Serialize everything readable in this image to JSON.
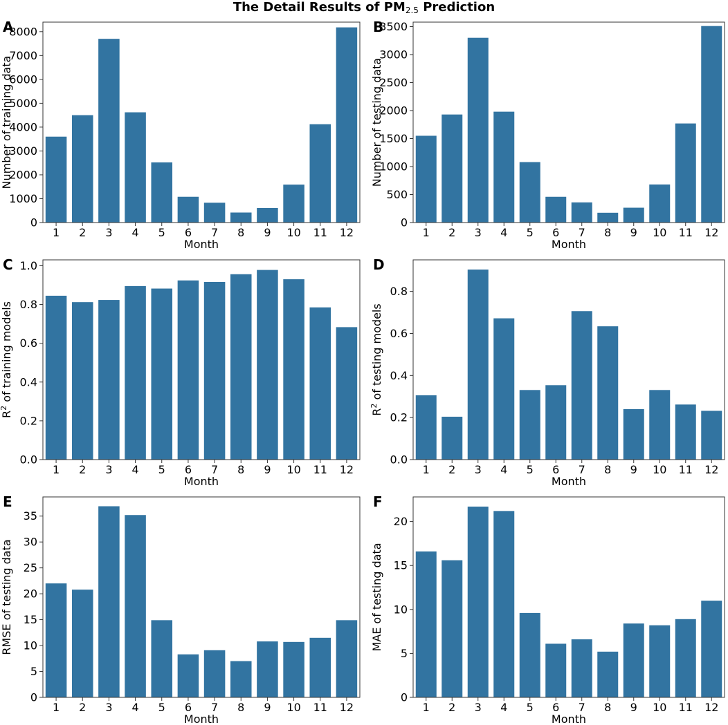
{
  "figure_title": {
    "main": "The Detail Results of PM",
    "sub": "2.5",
    "tail": " Prediction"
  },
  "chart_data": [
    {
      "panel": "A",
      "type": "bar",
      "categories": [
        "1",
        "2",
        "3",
        "4",
        "5",
        "6",
        "7",
        "8",
        "9",
        "10",
        "11",
        "12"
      ],
      "values": [
        3600,
        4500,
        7700,
        4620,
        2520,
        1080,
        830,
        420,
        610,
        1590,
        4120,
        8180
      ],
      "xlabel": "Month",
      "ylabel": "Number of training data",
      "ylim": [
        0,
        8400
      ],
      "yticks": [
        0,
        1000,
        2000,
        3000,
        4000,
        5000,
        6000,
        7000,
        8000
      ],
      "ytick_labels": [
        "0",
        "1000",
        "2000",
        "3000",
        "4000",
        "5000",
        "6000",
        "7000",
        "8000"
      ]
    },
    {
      "panel": "B",
      "type": "bar",
      "categories": [
        "1",
        "2",
        "3",
        "4",
        "5",
        "6",
        "7",
        "8",
        "9",
        "10",
        "11",
        "12"
      ],
      "values": [
        1550,
        1930,
        3300,
        1980,
        1080,
        460,
        360,
        175,
        265,
        680,
        1770,
        3510
      ],
      "xlabel": "Month",
      "ylabel": "Number of testing data",
      "ylim": [
        0,
        3580
      ],
      "yticks": [
        0,
        500,
        1000,
        1500,
        2000,
        2500,
        3000,
        3500
      ],
      "ytick_labels": [
        "0",
        "500",
        "1000",
        "1500",
        "2000",
        "2500",
        "3000",
        "3500"
      ]
    },
    {
      "panel": "C",
      "type": "bar",
      "categories": [
        "1",
        "2",
        "3",
        "4",
        "5",
        "6",
        "7",
        "8",
        "9",
        "10",
        "11",
        "12"
      ],
      "values": [
        0.845,
        0.812,
        0.823,
        0.895,
        0.882,
        0.924,
        0.916,
        0.956,
        0.978,
        0.93,
        0.785,
        0.683
      ],
      "xlabel": "Month",
      "ylabel_main": "R",
      "ylabel_sup": "2",
      "ylabel_rest": " of training models",
      "ylim": [
        0,
        1.03
      ],
      "yticks": [
        0,
        0.2,
        0.4,
        0.6,
        0.8,
        1.0
      ],
      "ytick_labels": [
        "0.0",
        "0.2",
        "0.4",
        "0.6",
        "0.8",
        "1.0"
      ]
    },
    {
      "panel": "D",
      "type": "bar",
      "categories": [
        "1",
        "2",
        "3",
        "4",
        "5",
        "6",
        "7",
        "8",
        "9",
        "10",
        "11",
        "12"
      ],
      "values": [
        0.306,
        0.204,
        0.904,
        0.672,
        0.331,
        0.354,
        0.706,
        0.634,
        0.24,
        0.331,
        0.262,
        0.232
      ],
      "xlabel": "Month",
      "ylabel_main": "R",
      "ylabel_sup": "2",
      "ylabel_rest": " of testing models",
      "ylim": [
        0,
        0.95
      ],
      "yticks": [
        0,
        0.2,
        0.4,
        0.6,
        0.8
      ],
      "ytick_labels": [
        "0.0",
        "0.2",
        "0.4",
        "0.6",
        "0.8"
      ]
    },
    {
      "panel": "E",
      "type": "bar",
      "categories": [
        "1",
        "2",
        "3",
        "4",
        "5",
        "6",
        "7",
        "8",
        "9",
        "10",
        "11",
        "12"
      ],
      "values": [
        22.0,
        20.8,
        36.9,
        35.2,
        14.9,
        8.3,
        9.1,
        7.0,
        10.8,
        10.7,
        11.5,
        14.9
      ],
      "xlabel": "Month",
      "ylabel": "RMSE of testing data",
      "ylim": [
        0,
        38.7
      ],
      "yticks": [
        0,
        5,
        10,
        15,
        20,
        25,
        30,
        35
      ],
      "ytick_labels": [
        "0",
        "5",
        "10",
        "15",
        "20",
        "25",
        "30",
        "35"
      ]
    },
    {
      "panel": "F",
      "type": "bar",
      "categories": [
        "1",
        "2",
        "3",
        "4",
        "5",
        "6",
        "7",
        "8",
        "9",
        "10",
        "11",
        "12"
      ],
      "values": [
        16.6,
        15.6,
        21.7,
        21.2,
        9.6,
        6.1,
        6.6,
        5.2,
        8.4,
        8.2,
        8.9,
        11.0
      ],
      "xlabel": "Month",
      "ylabel": "MAE of testing data",
      "ylim": [
        0,
        22.8
      ],
      "yticks": [
        0,
        5,
        10,
        15,
        20
      ],
      "ytick_labels": [
        "0",
        "5",
        "10",
        "15",
        "20"
      ]
    }
  ]
}
